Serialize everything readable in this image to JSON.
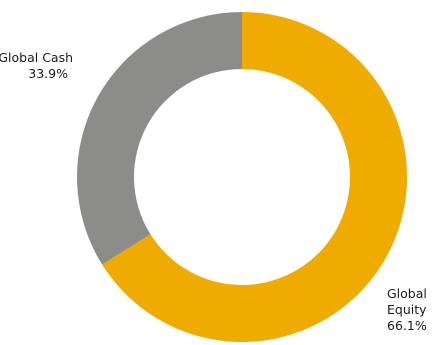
{
  "chart_data": {
    "type": "pie",
    "variant": "donut",
    "slices": [
      {
        "label": "Global Equity",
        "value": 66.1,
        "value_label": "66.1%",
        "color": "#f0ab00"
      },
      {
        "label": "Global Cash",
        "value": 33.9,
        "value_label": "33.9%",
        "color": "#8c8c8b"
      }
    ],
    "start_angle_deg": 0,
    "direction": "clockwise",
    "legend": "none"
  }
}
